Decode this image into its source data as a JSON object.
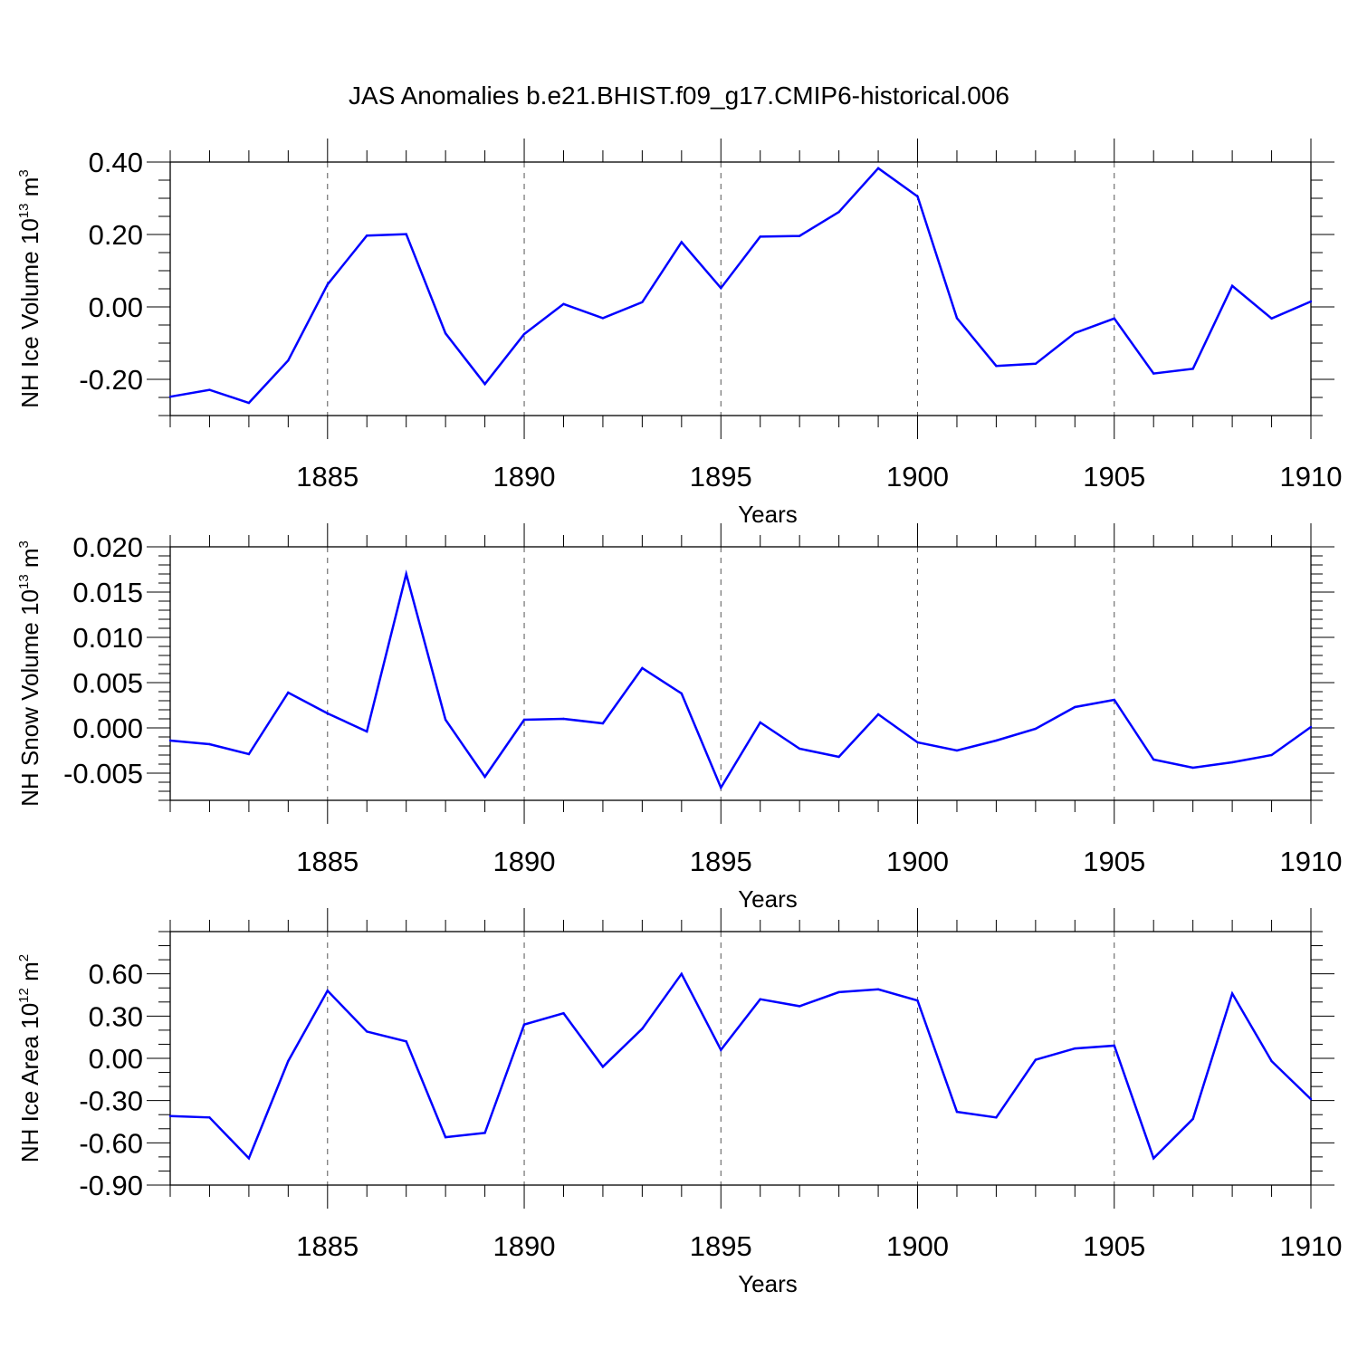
{
  "title": "JAS Anomalies b.e21.BHIST.f09_g17.CMIP6-historical.006",
  "chart_data": [
    {
      "type": "line",
      "title": "",
      "xlabel": "Years",
      "ylabel": {
        "main": "NH Ice Volume 10",
        "exp": "13",
        "unit": " m",
        "unit_exp": "3"
      },
      "xlim": [
        1881,
        1910
      ],
      "ylim": [
        -0.3,
        0.4
      ],
      "xticks": [
        1885,
        1890,
        1895,
        1900,
        1905,
        1910
      ],
      "xtick_labels": [
        "1885",
        "1890",
        "1895",
        "1900",
        "1905",
        "1910"
      ],
      "yticks": [
        -0.2,
        0.0,
        0.2,
        0.4
      ],
      "ytick_labels": [
        "-0.20",
        "0.00",
        "0.20",
        "0.40"
      ],
      "y_minor_step": 0.05,
      "grid": "vertical dashed at labeled x ticks",
      "line_color": "#0000ff",
      "x": [
        1881,
        1882,
        1883,
        1884,
        1885,
        1886,
        1887,
        1888,
        1889,
        1890,
        1891,
        1892,
        1893,
        1894,
        1895,
        1896,
        1897,
        1898,
        1899,
        1900,
        1901,
        1902,
        1903,
        1904,
        1905,
        1906,
        1907,
        1908,
        1909,
        1910
      ],
      "values": [
        -0.248,
        -0.229,
        -0.265,
        -0.148,
        0.062,
        0.197,
        0.201,
        -0.073,
        -0.213,
        -0.075,
        0.008,
        -0.031,
        0.013,
        0.179,
        0.052,
        0.194,
        0.196,
        0.262,
        0.383,
        0.305,
        -0.031,
        -0.163,
        -0.157,
        -0.072,
        -0.032,
        -0.184,
        -0.171,
        0.058,
        -0.032,
        0.015
      ]
    },
    {
      "type": "line",
      "title": "",
      "xlabel": "Years",
      "ylabel": {
        "main": "NH Snow Volume 10",
        "exp": "13",
        "unit": " m",
        "unit_exp": "3"
      },
      "xlim": [
        1881,
        1910
      ],
      "ylim": [
        -0.008,
        0.02
      ],
      "xticks": [
        1885,
        1890,
        1895,
        1900,
        1905,
        1910
      ],
      "xtick_labels": [
        "1885",
        "1890",
        "1895",
        "1900",
        "1905",
        "1910"
      ],
      "yticks": [
        -0.005,
        0.0,
        0.005,
        0.01,
        0.015,
        0.02
      ],
      "ytick_labels": [
        "-0.005",
        "0.000",
        "0.005",
        "0.010",
        "0.015",
        "0.020"
      ],
      "y_minor_step": 0.001,
      "grid": "vertical dashed at labeled x ticks",
      "line_color": "#0000ff",
      "x": [
        1881,
        1882,
        1883,
        1884,
        1885,
        1886,
        1887,
        1888,
        1889,
        1890,
        1891,
        1892,
        1893,
        1894,
        1895,
        1896,
        1897,
        1898,
        1899,
        1900,
        1901,
        1902,
        1903,
        1904,
        1905,
        1906,
        1907,
        1908,
        1909,
        1910
      ],
      "values": [
        -0.0014,
        -0.0018,
        -0.0029,
        0.0039,
        0.0016,
        -0.0004,
        0.017,
        0.0009,
        -0.0054,
        0.0009,
        0.001,
        0.0005,
        0.0066,
        0.0038,
        -0.0066,
        0.0006,
        -0.0023,
        -0.0032,
        0.0015,
        -0.0016,
        -0.0025,
        -0.0014,
        -0.0001,
        0.0023,
        0.0031,
        -0.0035,
        -0.0044,
        -0.0038,
        -0.003,
        0.0001
      ]
    },
    {
      "type": "line",
      "title": "",
      "xlabel": "Years",
      "ylabel": {
        "main": "NH Ice Area 10",
        "exp": "12",
        "unit": " m",
        "unit_exp": "2"
      },
      "xlim": [
        1881,
        1910
      ],
      "ylim": [
        -0.9,
        0.9
      ],
      "xticks": [
        1885,
        1890,
        1895,
        1900,
        1905,
        1910
      ],
      "xtick_labels": [
        "1885",
        "1890",
        "1895",
        "1900",
        "1905",
        "1910"
      ],
      "yticks": [
        -0.9,
        -0.6,
        -0.3,
        0.0,
        0.3,
        0.6
      ],
      "ytick_labels": [
        "-0.90",
        "-0.60",
        "-0.30",
        "0.00",
        "0.30",
        "0.60"
      ],
      "y_minor_step": 0.1,
      "grid": "vertical dashed at labeled x ticks",
      "line_color": "#0000ff",
      "x": [
        1881,
        1882,
        1883,
        1884,
        1885,
        1886,
        1887,
        1888,
        1889,
        1890,
        1891,
        1892,
        1893,
        1894,
        1895,
        1896,
        1897,
        1898,
        1899,
        1900,
        1901,
        1902,
        1903,
        1904,
        1905,
        1906,
        1907,
        1908,
        1909,
        1910
      ],
      "values": [
        -0.41,
        -0.42,
        -0.71,
        -0.02,
        0.48,
        0.19,
        0.12,
        -0.56,
        -0.53,
        0.24,
        0.32,
        -0.06,
        0.21,
        0.6,
        0.06,
        0.42,
        0.37,
        0.47,
        0.49,
        0.41,
        -0.38,
        -0.42,
        -0.01,
        0.07,
        0.09,
        -0.71,
        -0.43,
        0.46,
        -0.02,
        -0.29
      ]
    }
  ]
}
